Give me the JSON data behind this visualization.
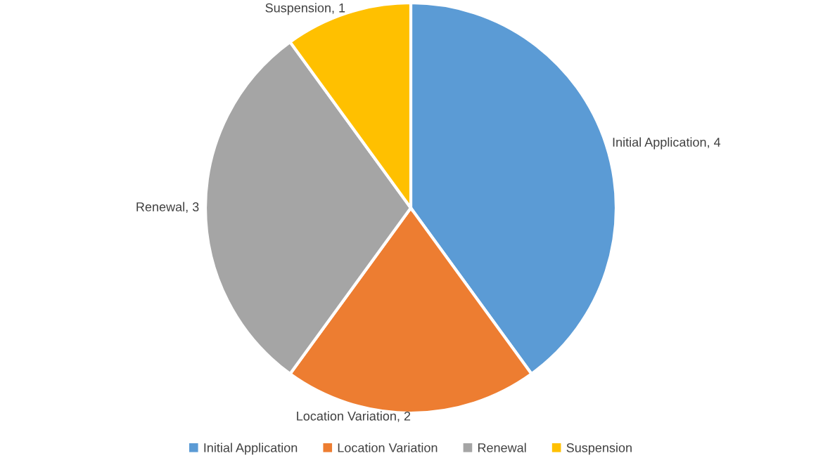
{
  "chart_data": {
    "type": "pie",
    "categories": [
      "Initial Application",
      "Location Variation",
      "Renewal",
      "Suspension"
    ],
    "values": [
      4,
      2,
      3,
      1
    ],
    "value_labels": [
      "Initial Application, 4",
      "Location Variation, 2",
      "Renewal, 3",
      "Suspension, 1"
    ],
    "colors": [
      "#5b9bd5",
      "#ed7d31",
      "#a5a5a5",
      "#ffc000"
    ],
    "legend": "bottom"
  }
}
